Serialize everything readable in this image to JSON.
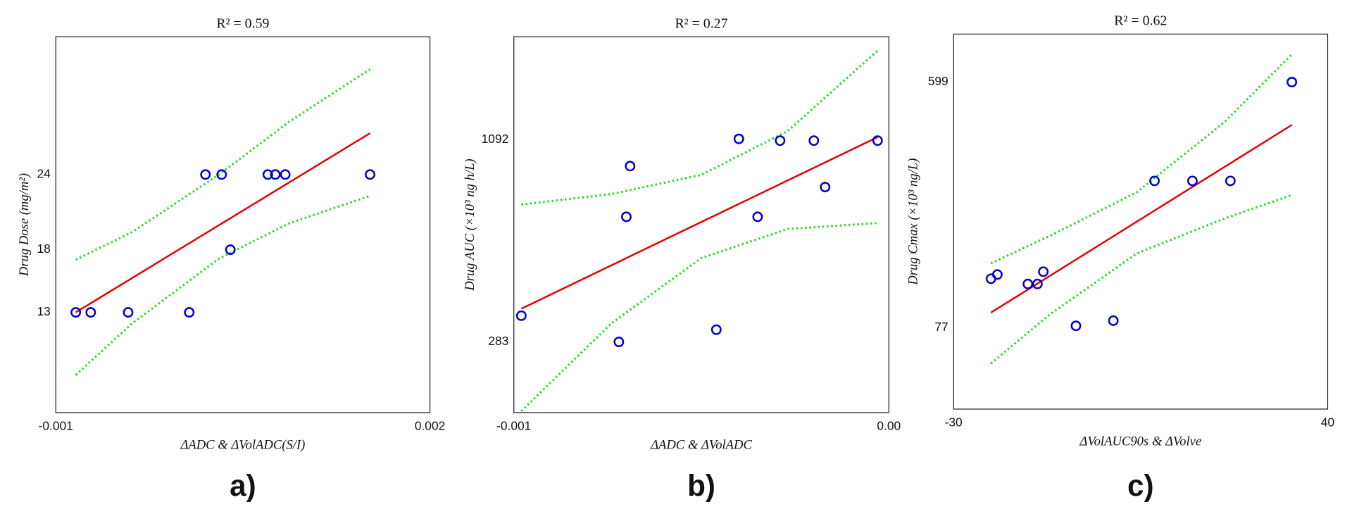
{
  "chart_data": [
    {
      "type": "scatter",
      "title": "R² = 0.59",
      "x_label": "ΔADC & ΔVolADC(S/I)",
      "y_label": "Drug Dose (mg/m²)",
      "panel_label": "a)",
      "xlim": [
        -0.001,
        0.002
      ],
      "ylim": [
        5,
        35
      ],
      "xticks": [
        -0.001,
        0.002
      ],
      "yticks": [
        13,
        18,
        24
      ],
      "points": {
        "color": "#0000cc",
        "x": [
          -0.00084,
          -0.00072,
          -0.00042,
          7e-05,
          0.0002,
          0.00033,
          0.0004,
          0.0007,
          0.00076,
          0.00084,
          0.00152
        ],
        "y": [
          13,
          13,
          13,
          13,
          24,
          24,
          18,
          24,
          24,
          24,
          24
        ]
      },
      "fit": {
        "color": "#e00000",
        "x": [
          -0.00084,
          0.00152
        ],
        "y": [
          13,
          27.3
        ]
      },
      "ci_upper": {
        "color": "#22dd22",
        "x": [
          -0.00084,
          -0.00039,
          0.00031,
          0.00087,
          0.00152
        ],
        "y": [
          17.2,
          19.4,
          24.0,
          28.2,
          32.4
        ]
      },
      "ci_lower": {
        "color": "#22dd22",
        "x": [
          -0.00084,
          -0.00039,
          0.00031,
          0.00087,
          0.00152
        ],
        "y": [
          8.0,
          12.1,
          17.3,
          20.1,
          22.3
        ]
      }
    },
    {
      "type": "scatter",
      "title": "R² = 0.27",
      "x_label": "ΔADC & ΔVolADC",
      "y_label": "Drug AUC (×10³ ng h/L)",
      "panel_label": "b)",
      "xlim": [
        -0.001,
        0
      ],
      "ylim": [
        0,
        1505
      ],
      "xticks": [
        -0.001,
        {
          "value": 0,
          "label": "0.00"
        }
      ],
      "yticks": [
        283,
        1092
      ],
      "points": {
        "color": "#0000cc",
        "x": [
          -0.00098,
          -0.00072,
          -0.0007,
          -0.00069,
          -0.00046,
          -0.0004,
          -0.00035,
          -0.00029,
          -0.0002,
          -0.00017,
          -3e-05
        ],
        "y": [
          388,
          283,
          784,
          987,
          332,
          1096,
          784,
          1089,
          1089,
          903,
          1089
        ]
      },
      "fit": {
        "color": "#e00000",
        "x": [
          -0.00098,
          -3e-05
        ],
        "y": [
          416,
          1103
        ]
      },
      "ci_upper": {
        "color": "#22dd22",
        "x": [
          -0.00098,
          -0.00074,
          -0.0005,
          -0.00027,
          -3e-05
        ],
        "y": [
          833,
          875,
          952,
          1127,
          1449
        ]
      },
      "ci_lower": {
        "color": "#22dd22",
        "x": [
          -0.00098,
          -0.00074,
          -0.0005,
          -0.00027,
          -3e-05
        ],
        "y": [
          6,
          357,
          619,
          735,
          759
        ]
      }
    },
    {
      "type": "scatter",
      "title": "R² = 0.62",
      "x_label": "ΔVolAUC90s & ΔVolve",
      "y_label": "Drug Cmax (×10³ ng/L)",
      "panel_label": "c)",
      "xlim": [
        -30,
        40
      ],
      "ylim": [
        -96,
        701
      ],
      "xticks": [
        -30,
        40
      ],
      "yticks": [
        77,
        599
      ],
      "points": {
        "color": "#0000cc",
        "x": [
          -23,
          -21.8,
          -16.1,
          -14.3,
          -13.2,
          -7.1,
          -0.1,
          7.6,
          14.7,
          21.8,
          33.3
        ],
        "y": [
          181,
          190,
          170,
          170,
          196,
          81,
          92,
          389,
          389,
          389,
          599
        ]
      },
      "fit": {
        "color": "#e00000",
        "x": [
          -23,
          33.3
        ],
        "y": [
          109,
          508
        ]
      },
      "ci_upper": {
        "color": "#22dd22",
        "x": [
          -23,
          -12.0,
          4.3,
          20.7,
          33.3
        ],
        "y": [
          214,
          272,
          365,
          514,
          658
        ]
      },
      "ci_lower": {
        "color": "#22dd22",
        "x": [
          -23,
          -12.0,
          4.3,
          20.7,
          33.3
        ],
        "y": [
          1,
          105,
          235,
          309,
          359
        ]
      }
    }
  ]
}
